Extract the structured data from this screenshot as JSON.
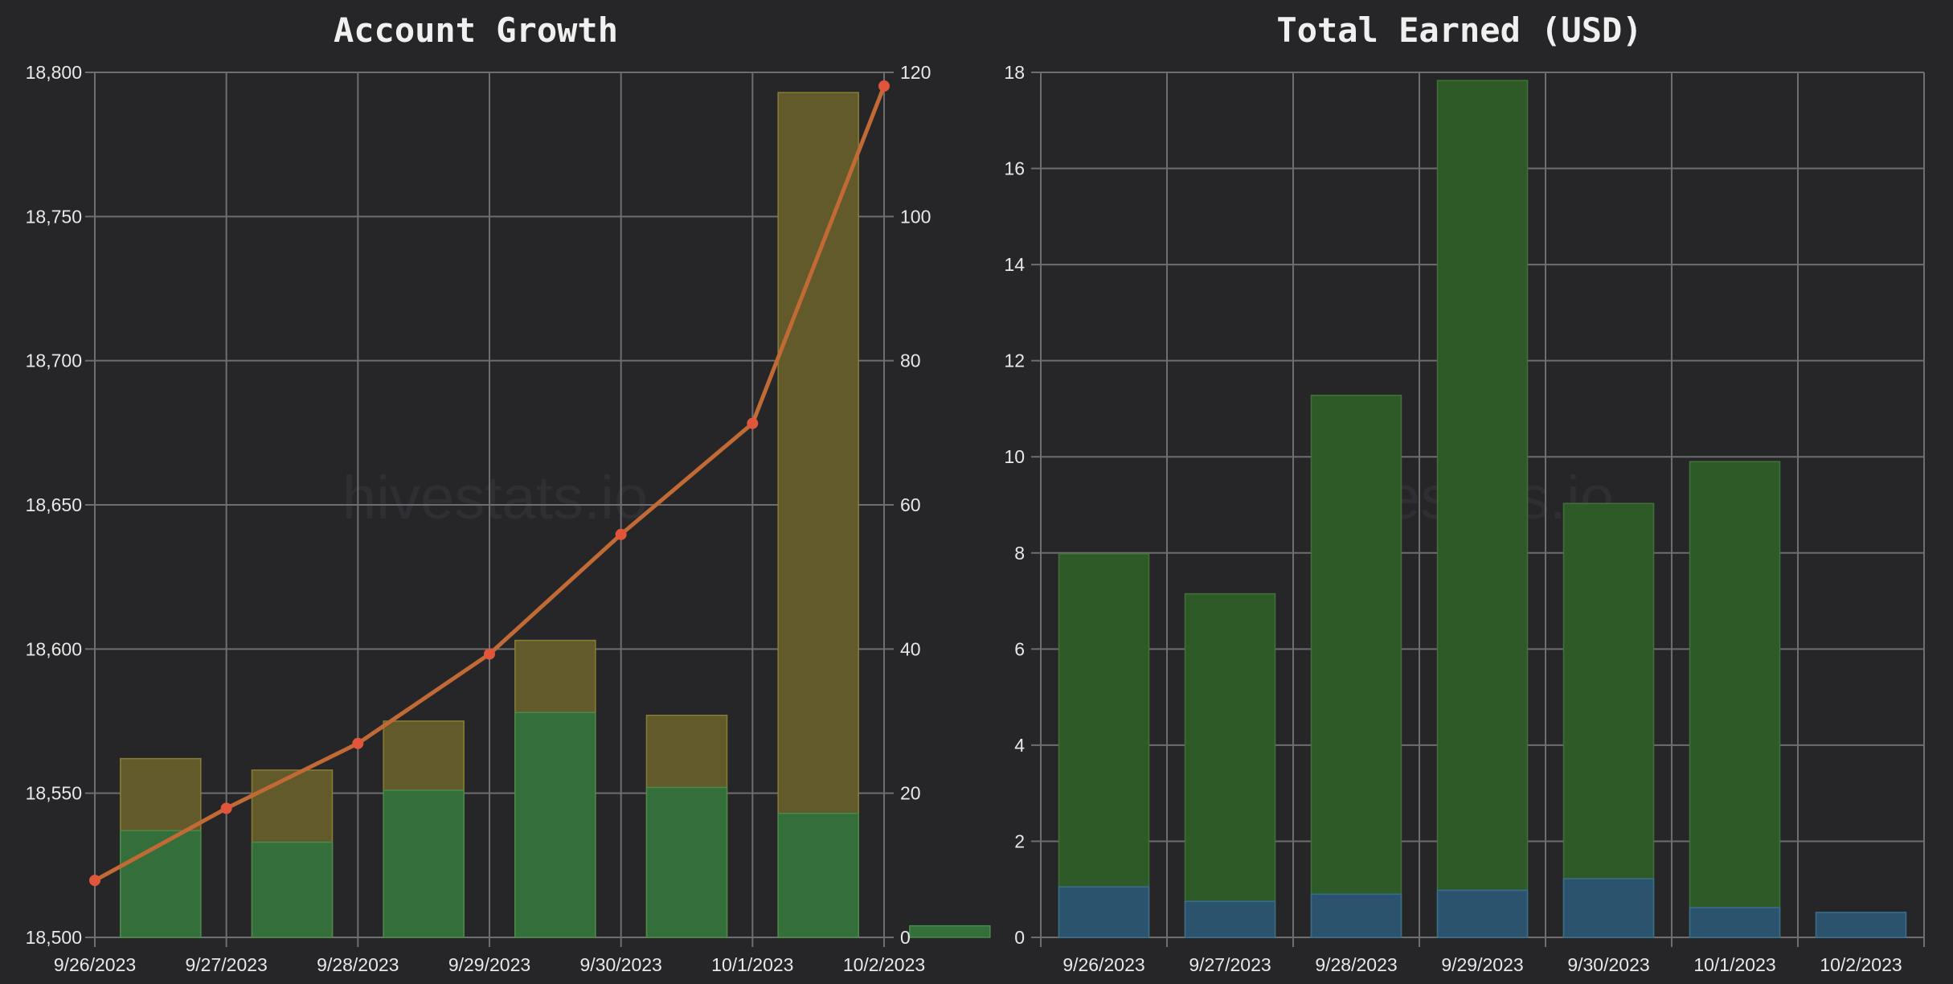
{
  "watermark": "hivestats.io",
  "chart_data": [
    {
      "type": "bar",
      "title": "Account Growth",
      "categories": [
        "9/26/2023",
        "9/27/2023",
        "9/28/2023",
        "9/29/2023",
        "9/30/2023",
        "10/1/2023",
        "10/2/2023"
      ],
      "yleft_ticks": [
        "18,500",
        "18,550",
        "18,600",
        "18,650",
        "18,700",
        "18,750",
        "18,800"
      ],
      "yleft_lim": [
        18500,
        18800
      ],
      "yright_ticks": [
        "0",
        "20",
        "40",
        "60",
        "80",
        "100",
        "120"
      ],
      "yright_lim": [
        0,
        120
      ],
      "grid": true,
      "colors": {
        "green": "#346e3a",
        "olive": "#625a2a",
        "line": "#c26a35",
        "marker": "#e0563a"
      },
      "series": [
        {
          "axis": "left",
          "kind": "bar-base",
          "values": [
            18537,
            18533,
            18551,
            18578,
            18552,
            18543,
            18504
          ]
        },
        {
          "axis": "left",
          "kind": "bar-top",
          "values": [
            18562,
            18558,
            18575,
            18603,
            18577,
            18793,
            null
          ]
        },
        {
          "axis": "right",
          "kind": "line",
          "values": [
            7.9,
            17.9,
            26.9,
            39.3,
            55.9,
            71.3,
            118.1
          ]
        }
      ]
    },
    {
      "type": "bar",
      "title": "Total Earned (USD)",
      "categories": [
        "9/26/2023",
        "9/27/2023",
        "9/28/2023",
        "9/29/2023",
        "9/30/2023",
        "10/1/2023",
        "10/2/2023"
      ],
      "y_ticks": [
        "0",
        "2",
        "4",
        "6",
        "8",
        "10",
        "12",
        "14",
        "16",
        "18"
      ],
      "ylim": [
        0,
        18
      ],
      "grid": true,
      "colors": {
        "green": "#2e5a28",
        "blue": "#2b536d"
      },
      "series": [
        {
          "kind": "stacked-base",
          "values": [
            1.05,
            0.75,
            0.9,
            0.98,
            1.22,
            0.62,
            0.52
          ]
        },
        {
          "kind": "stacked-total",
          "values": [
            7.98,
            7.15,
            11.28,
            17.83,
            9.03,
            9.9,
            null
          ]
        }
      ]
    }
  ]
}
